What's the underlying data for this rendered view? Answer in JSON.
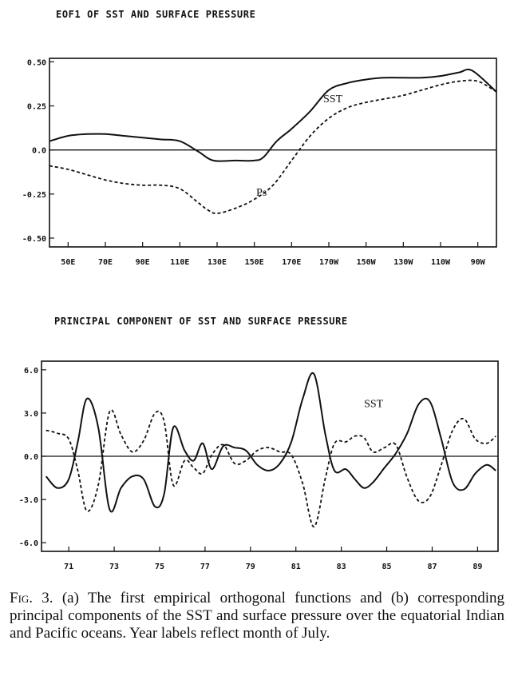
{
  "chart_data": [
    {
      "type": "line",
      "title": "EOF1 OF SST AND SURFACE PRESSURE",
      "xlabel": "",
      "ylabel": "",
      "categories": [
        "50E",
        "70E",
        "90E",
        "110E",
        "130E",
        "150E",
        "170E",
        "170W",
        "150W",
        "130W",
        "110W",
        "90W"
      ],
      "x_values": [
        50,
        70,
        90,
        110,
        130,
        150,
        170,
        190,
        210,
        230,
        250,
        270
      ],
      "x_tick_labels": [
        "50E",
        "70E",
        "90E",
        "110E",
        "130E",
        "150E",
        "170E",
        "170W",
        "150W",
        "130W",
        "110W",
        "90W"
      ],
      "xlim": [
        40,
        280
      ],
      "ylim": [
        -0.55,
        0.52
      ],
      "y_ticks": [
        0.5,
        0.25,
        0.0,
        -0.25,
        -0.5
      ],
      "y_tick_labels": [
        "0.50",
        "0.25",
        "0.0",
        "-0.25",
        "-0.50"
      ],
      "grid": false,
      "zero_line": true,
      "series": [
        {
          "name": "SST",
          "style": "solid",
          "color": "#111111",
          "x": [
            40,
            50,
            60,
            70,
            80,
            90,
            100,
            110,
            120,
            128,
            140,
            150,
            155,
            162,
            170,
            180,
            190,
            200,
            210,
            220,
            230,
            240,
            250,
            260,
            267,
            280
          ],
          "y": [
            0.05,
            0.08,
            0.09,
            0.09,
            0.08,
            0.07,
            0.06,
            0.05,
            -0.01,
            -0.06,
            -0.06,
            -0.06,
            -0.04,
            0.05,
            0.12,
            0.22,
            0.34,
            0.38,
            0.4,
            0.41,
            0.41,
            0.41,
            0.42,
            0.44,
            0.45,
            0.33
          ]
        },
        {
          "name": "Ps",
          "style": "dashed",
          "color": "#111111",
          "x": [
            40,
            50,
            60,
            70,
            80,
            90,
            100,
            110,
            120,
            125,
            130,
            140,
            150,
            160,
            170,
            180,
            190,
            200,
            210,
            220,
            230,
            240,
            250,
            260,
            270,
            280
          ],
          "y": [
            -0.09,
            -0.11,
            -0.14,
            -0.17,
            -0.19,
            -0.2,
            -0.2,
            -0.22,
            -0.3,
            -0.34,
            -0.36,
            -0.33,
            -0.28,
            -0.2,
            -0.06,
            0.08,
            0.18,
            0.24,
            0.27,
            0.29,
            0.31,
            0.34,
            0.37,
            0.39,
            0.39,
            0.33
          ]
        }
      ],
      "annotations": [
        {
          "text": "SST",
          "x": 187,
          "y": 0.27
        },
        {
          "text": "Ps",
          "x": 151,
          "y": -0.26
        }
      ]
    },
    {
      "type": "line",
      "title": "PRINCIPAL COMPONENT OF SST AND SURFACE PRESSURE",
      "xlabel": "",
      "ylabel": "",
      "x_tick_values": [
        71,
        73,
        75,
        77,
        79,
        81,
        83,
        85,
        87,
        89
      ],
      "x_tick_labels": [
        "71",
        "73",
        "75",
        "77",
        "79",
        "81",
        "83",
        "85",
        "87",
        "89"
      ],
      "xlim": [
        69.8,
        89.9
      ],
      "ylim": [
        -6.6,
        6.6
      ],
      "y_ticks": [
        6,
        3,
        0,
        -3,
        -6
      ],
      "y_tick_labels": [
        "6.0",
        "3.0",
        "0.0",
        "-3.0",
        "-6.0"
      ],
      "grid": false,
      "zero_line": true,
      "series": [
        {
          "name": "SST",
          "style": "solid",
          "color": "#111111",
          "x": [
            70.0,
            70.5,
            71.0,
            71.4,
            71.8,
            72.3,
            72.8,
            73.3,
            73.8,
            74.3,
            74.8,
            75.2,
            75.6,
            76.1,
            76.5,
            76.9,
            77.3,
            77.8,
            78.3,
            78.8,
            79.3,
            79.8,
            80.3,
            80.8,
            81.3,
            81.8,
            82.3,
            82.7,
            83.2,
            83.6,
            84.0,
            84.4,
            84.9,
            85.4,
            85.9,
            86.4,
            86.9,
            87.4,
            87.9,
            88.4,
            88.9,
            89.4,
            89.8
          ],
          "y": [
            -1.4,
            -2.2,
            -1.6,
            1.0,
            4.0,
            2.0,
            -3.7,
            -2.2,
            -1.4,
            -1.6,
            -3.5,
            -2.6,
            2.0,
            0.4,
            -0.3,
            0.9,
            -0.9,
            0.7,
            0.6,
            0.4,
            -0.6,
            -1.0,
            -0.5,
            1.0,
            4.0,
            5.7,
            1.5,
            -1.0,
            -0.9,
            -1.6,
            -2.2,
            -1.8,
            -0.8,
            0.2,
            1.6,
            3.6,
            3.8,
            1.2,
            -1.8,
            -2.3,
            -1.2,
            -0.6,
            -1.0
          ]
        },
        {
          "name": "",
          "style": "dashed",
          "color": "#111111",
          "x": [
            70.0,
            70.5,
            71.0,
            71.4,
            71.8,
            72.3,
            72.8,
            73.3,
            73.8,
            74.3,
            74.8,
            75.2,
            75.6,
            76.1,
            76.5,
            76.9,
            77.3,
            77.8,
            78.3,
            78.8,
            79.3,
            79.8,
            80.3,
            80.8,
            81.3,
            81.8,
            82.3,
            82.7,
            83.2,
            83.6,
            84.0,
            84.4,
            84.9,
            85.4,
            85.9,
            86.4,
            86.9,
            87.4,
            87.9,
            88.4,
            88.9,
            89.4,
            89.8
          ],
          "y": [
            1.8,
            1.6,
            1.2,
            -1.0,
            -3.8,
            -2.0,
            3.1,
            1.5,
            0.3,
            1.1,
            3.0,
            2.4,
            -2.0,
            -0.3,
            -0.8,
            -1.2,
            0.1,
            0.8,
            -0.5,
            -0.3,
            0.4,
            0.6,
            0.3,
            0.1,
            -1.9,
            -4.9,
            -1.5,
            0.9,
            1.0,
            1.4,
            1.3,
            0.3,
            0.6,
            0.8,
            -1.5,
            -3.1,
            -2.8,
            -0.6,
            1.8,
            2.6,
            1.2,
            0.9,
            1.4
          ]
        }
      ],
      "annotations": [
        {
          "text": "SST",
          "x": 84.0,
          "y": 3.4
        }
      ]
    }
  ],
  "caption": {
    "lead": "Fig. 3.",
    "text": " (a) The first empirical orthogonal functions and (b) corresponding principal components of the SST and surface pressure over the equatorial Indian and Pacific oceans. Year labels reflect month of July."
  }
}
